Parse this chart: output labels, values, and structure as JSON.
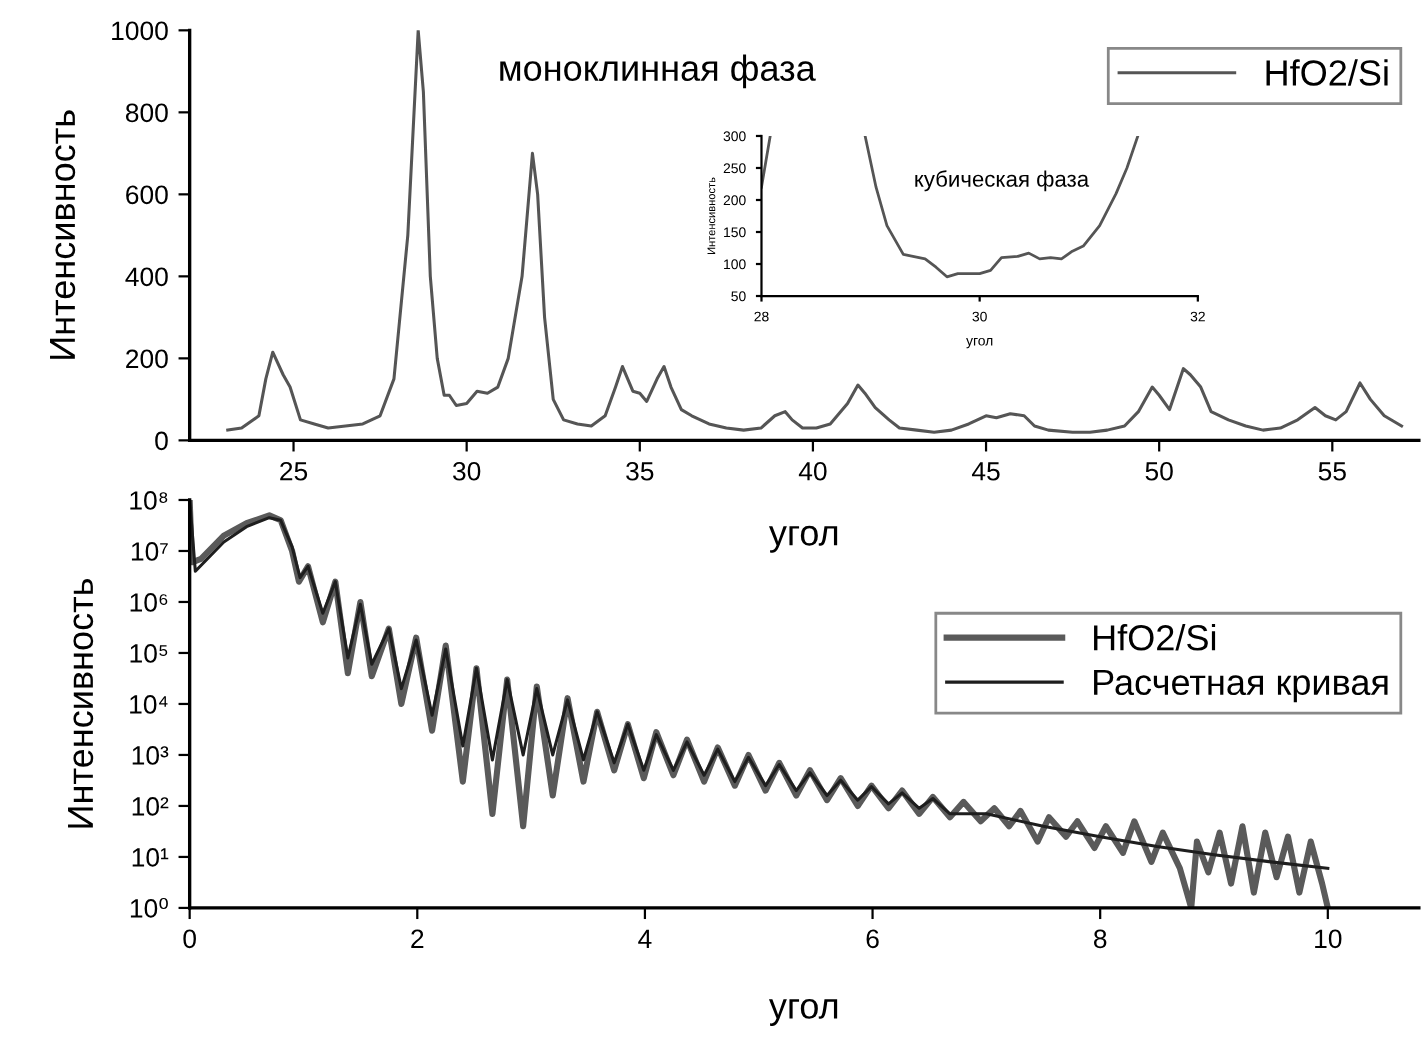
{
  "chart_data": [
    {
      "type": "line",
      "ylabel": "Интенсивность",
      "xlabel": "угол",
      "annotations": [
        "моноклинная фаза"
      ],
      "legend": "top right",
      "grid": false,
      "xlim": [
        22,
        57.5
      ],
      "ylim": [
        0,
        1000
      ],
      "xticks": [
        25,
        30,
        35,
        40,
        45,
        50,
        55
      ],
      "yticks": [
        0,
        200,
        400,
        600,
        800,
        1000
      ],
      "series": [
        {
          "name": "HfO2/Si",
          "color": "#555555",
          "x": [
            23.1,
            23.5,
            24.0,
            24.2,
            24.4,
            24.7,
            24.9,
            25.2,
            25.6,
            26.0,
            26.5,
            27.0,
            27.5,
            27.9,
            28.3,
            28.6,
            28.75,
            28.95,
            29.15,
            29.35,
            29.5,
            29.7,
            30.0,
            30.3,
            30.6,
            30.9,
            31.2,
            31.6,
            31.9,
            32.05,
            32.25,
            32.5,
            32.8,
            33.2,
            33.6,
            34.0,
            34.3,
            34.5,
            34.8,
            35.0,
            35.2,
            35.5,
            35.7,
            35.9,
            36.2,
            36.5,
            37.0,
            37.5,
            38.0,
            38.5,
            38.9,
            39.2,
            39.4,
            39.7,
            40.1,
            40.5,
            41.0,
            41.3,
            41.5,
            41.8,
            42.2,
            42.5,
            43.0,
            43.5,
            44.0,
            44.5,
            45.0,
            45.3,
            45.7,
            46.1,
            46.4,
            46.8,
            47.5,
            48.0,
            48.5,
            49.0,
            49.4,
            49.8,
            50.0,
            50.3,
            50.7,
            50.9,
            51.2,
            51.5,
            52.0,
            52.5,
            53.0,
            53.5,
            54.0,
            54.5,
            54.8,
            55.1,
            55.4,
            55.8,
            56.1,
            56.5,
            57.0
          ],
          "values": [
            25,
            30,
            60,
            150,
            215,
            160,
            130,
            50,
            40,
            30,
            35,
            40,
            60,
            150,
            500,
            1000,
            850,
            400,
            200,
            110,
            110,
            85,
            90,
            120,
            115,
            130,
            200,
            400,
            700,
            600,
            300,
            100,
            50,
            40,
            35,
            60,
            130,
            180,
            120,
            115,
            95,
            150,
            180,
            130,
            75,
            60,
            40,
            30,
            25,
            30,
            60,
            70,
            50,
            30,
            30,
            40,
            90,
            135,
            115,
            80,
            50,
            30,
            25,
            20,
            25,
            40,
            60,
            55,
            65,
            60,
            35,
            25,
            20,
            20,
            25,
            35,
            70,
            130,
            110,
            75,
            175,
            160,
            130,
            70,
            50,
            35,
            25,
            30,
            50,
            80,
            60,
            50,
            70,
            140,
            100,
            60,
            35
          ]
        }
      ]
    },
    {
      "type": "line",
      "xlabel": "угол",
      "ylabel": "Интенсивность",
      "annotations": [
        "кубическая фаза"
      ],
      "grid": false,
      "xlim": [
        28,
        32
      ],
      "ylim": [
        50,
        300
      ],
      "xticks": [
        28,
        30,
        32
      ],
      "yticks": [
        50,
        100,
        150,
        200,
        250,
        300
      ],
      "series": [
        {
          "color": "#555555",
          "x": [
            28.0,
            28.04,
            28.08,
            28.5,
            28.95,
            29.05,
            29.15,
            29.3,
            29.5,
            29.6,
            29.7,
            29.8,
            30.0,
            30.1,
            30.2,
            30.35,
            30.45,
            30.55,
            30.65,
            30.75,
            30.85,
            30.95,
            31.1,
            31.25,
            31.35,
            31.45
          ],
          "values": [
            220,
            260,
            300,
            null,
            300,
            220,
            160,
            115,
            108,
            95,
            80,
            85,
            85,
            90,
            110,
            112,
            117,
            108,
            110,
            108,
            120,
            128,
            160,
            210,
            250,
            300
          ]
        }
      ]
    },
    {
      "type": "line",
      "ylabel": "Интенсивность",
      "xlabel": "угол",
      "log": "y",
      "legend": "right",
      "grid": false,
      "xlim": [
        0,
        10.8
      ],
      "ylim": [
        1,
        100000000
      ],
      "xticks": [
        0,
        2,
        4,
        6,
        8,
        10
      ],
      "yticks": [
        {
          "value": 1,
          "label": "10⁰"
        },
        {
          "value": 10,
          "label": "10¹"
        },
        {
          "value": 100,
          "label": "10²"
        },
        {
          "value": 1000,
          "label": "10³"
        },
        {
          "value": 10000,
          "label": "10⁴"
        },
        {
          "value": 100000,
          "label": "10⁵"
        },
        {
          "value": 1000000,
          "label": "10⁶"
        },
        {
          "value": 10000000,
          "label": "10⁷"
        },
        {
          "value": 100000000,
          "label": "10⁸"
        }
      ],
      "series": [
        {
          "name": "HfO2/Si",
          "color": "#5a5a5a",
          "x": [
            0.0,
            0.02,
            0.1,
            0.3,
            0.5,
            0.7,
            0.8,
            0.9,
            0.96,
            1.04,
            1.17,
            1.28,
            1.39,
            1.5,
            1.6,
            1.75,
            1.86,
            1.99,
            2.13,
            2.25,
            2.4,
            2.52,
            2.66,
            2.79,
            2.93,
            3.05,
            3.19,
            3.32,
            3.46,
            3.58,
            3.73,
            3.85,
            3.99,
            4.1,
            4.25,
            4.37,
            4.52,
            4.64,
            4.79,
            4.91,
            5.06,
            5.18,
            5.33,
            5.45,
            5.6,
            5.72,
            5.87,
            5.99,
            6.14,
            6.26,
            6.41,
            6.53,
            6.68,
            6.8,
            6.95,
            7.07,
            7.2,
            7.3,
            7.45,
            7.55,
            7.7,
            7.8,
            7.95,
            8.05,
            8.2,
            8.3,
            8.45,
            8.55,
            8.7,
            8.8,
            8.85,
            8.95,
            9.05,
            9.15,
            9.25,
            9.35,
            9.45,
            9.55,
            9.65,
            9.75,
            9.85,
            9.95,
            10.0
          ],
          "values": [
            100000000,
            6000000,
            7000000,
            20000000,
            35000000,
            50000000,
            40000000,
            10000000,
            2500000,
            5000000,
            400000,
            2500000,
            40000,
            1000000,
            35000,
            300000,
            10000,
            200000,
            3000,
            140000,
            300,
            50000,
            70,
            30000,
            40,
            22000,
            160,
            13000,
            300,
            7000,
            500,
            4000,
            350,
            2800,
            400,
            2000,
            300,
            1400,
            250,
            1000,
            200,
            700,
            160,
            500,
            130,
            350,
            100,
            250,
            90,
            200,
            70,
            150,
            60,
            120,
            50,
            90,
            40,
            80,
            20,
            60,
            25,
            50,
            15,
            40,
            12,
            50,
            8,
            30,
            6,
            1,
            20,
            5,
            30,
            3,
            40,
            2,
            30,
            4,
            25,
            2,
            20,
            3,
            1
          ]
        },
        {
          "name": "Расчетная кривая",
          "color": "#1e1e1e",
          "x": [
            0.0,
            0.05,
            0.3,
            0.5,
            0.7,
            0.8,
            0.9,
            0.97,
            1.04,
            1.17,
            1.28,
            1.39,
            1.5,
            1.6,
            1.75,
            1.86,
            1.99,
            2.13,
            2.25,
            2.4,
            2.52,
            2.66,
            2.79,
            2.93,
            3.05,
            3.19,
            3.32,
            3.46,
            3.58,
            3.73,
            3.85,
            3.99,
            4.1,
            4.25,
            4.37,
            4.52,
            4.64,
            4.79,
            4.91,
            5.06,
            5.18,
            5.33,
            5.45,
            5.6,
            5.72,
            5.87,
            5.99,
            6.14,
            6.26,
            6.41,
            6.53,
            6.68,
            7.0,
            7.5,
            8.0,
            8.5,
            9.0,
            9.5,
            10.0
          ],
          "values": [
            100000000,
            4000000,
            15000000,
            30000000,
            45000000,
            40000000,
            12000000,
            3000000,
            5000000,
            600000,
            2500000,
            80000,
            900000,
            60000,
            300000,
            20000,
            180000,
            6000,
            120000,
            1500,
            50000,
            800,
            30000,
            1000,
            20000,
            1000,
            12000,
            800,
            7000,
            700,
            4000,
            500,
            2500,
            500,
            1800,
            400,
            1300,
            300,
            900,
            250,
            650,
            200,
            450,
            160,
            320,
            130,
            240,
            110,
            180,
            90,
            140,
            70,
            70,
            40,
            25,
            16,
            11,
            8,
            6
          ]
        }
      ]
    }
  ]
}
